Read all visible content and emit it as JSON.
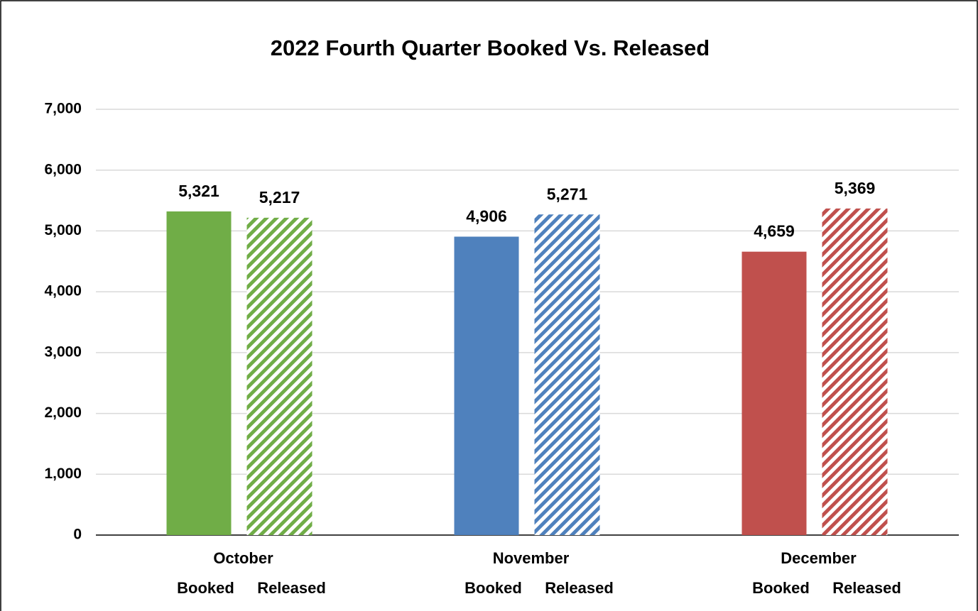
{
  "chart_data": {
    "type": "bar",
    "title": "2022 Fourth Quarter Booked Vs. Released",
    "categories": [
      "October",
      "November",
      "December"
    ],
    "colors": [
      "#70ad47",
      "#4f81bd",
      "#c0504d"
    ],
    "series": [
      {
        "name": "Booked",
        "fill": "solid",
        "values": [
          5321,
          4906,
          4659
        ],
        "value_labels": [
          "5,321",
          "4,906",
          "4,659"
        ]
      },
      {
        "name": "Released",
        "fill": "hatched",
        "values": [
          5217,
          5271,
          5369
        ],
        "value_labels": [
          "5,217",
          "5,271",
          "5,369"
        ]
      }
    ],
    "ylim": [
      0,
      7000
    ],
    "yticks": [
      0,
      {
        "value": 1000,
        "label": "1,000"
      },
      {
        "value": 2000,
        "label": "2,000"
      },
      {
        "value": 3000,
        "label": "3,000"
      },
      {
        "value": 4000,
        "label": "4,000"
      },
      {
        "value": 5000,
        "label": "5,000"
      },
      {
        "value": 6000,
        "label": "6,000"
      },
      {
        "value": 7000,
        "label": "7,000"
      }
    ],
    "grid": true
  }
}
